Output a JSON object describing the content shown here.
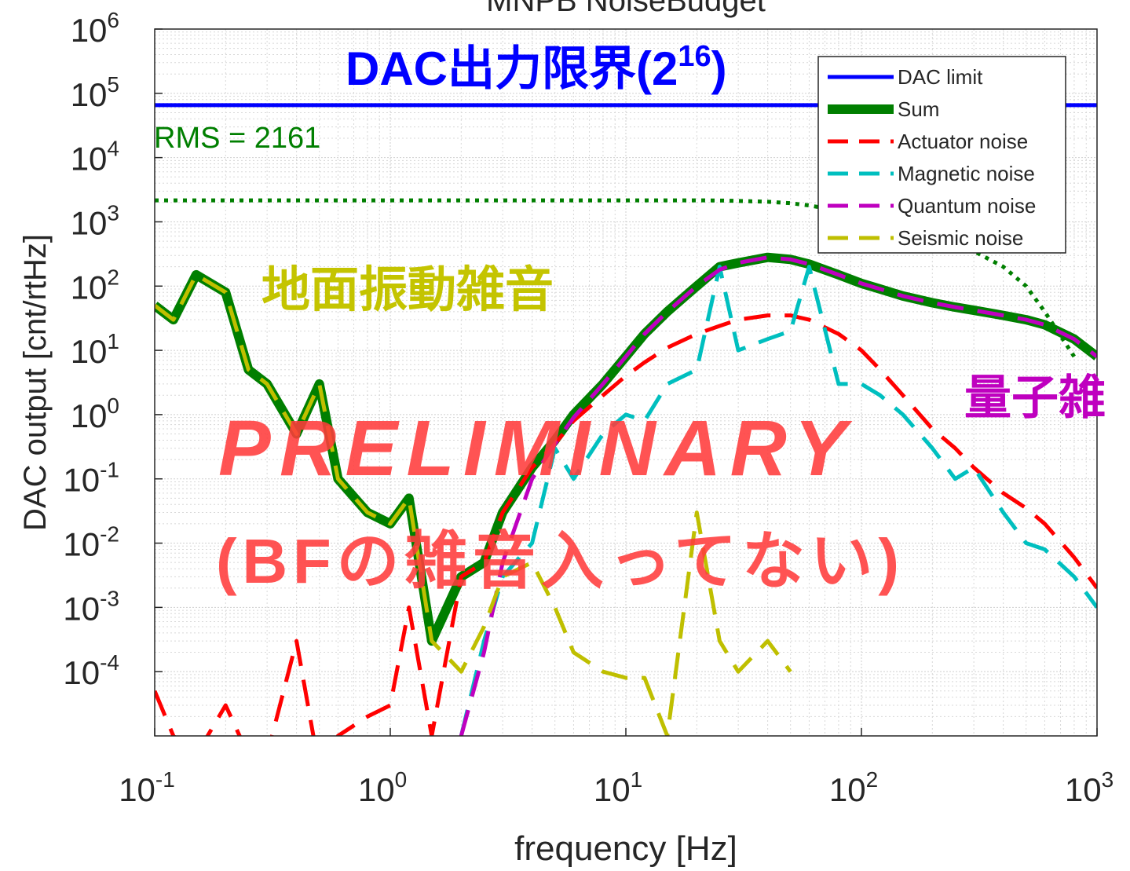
{
  "chart_data": {
    "type": "line",
    "title": "MNPB NoiseBudget",
    "x_label": "frequency [Hz]",
    "y_label": "DAC output [cnt/rtHz]",
    "log_x": true,
    "log_y": true,
    "grid": true,
    "legend": "upper right",
    "xlim": [
      0.1,
      1000
    ],
    "ylim": [
      1e-05,
      1000000
    ],
    "xticks": [
      {
        "value": 0.1,
        "label": "10",
        "exponent": "-1"
      },
      {
        "value": 1,
        "label": "10",
        "exponent": "0"
      },
      {
        "value": 10,
        "label": "10",
        "exponent": "1"
      },
      {
        "value": 100,
        "label": "10",
        "exponent": "2"
      },
      {
        "value": 1000,
        "label": "10",
        "exponent": "3"
      }
    ],
    "yticks": [
      {
        "value": 0.0001,
        "label": "10",
        "exponent": "-4"
      },
      {
        "value": 0.001,
        "label": "10",
        "exponent": "-3"
      },
      {
        "value": 0.01,
        "label": "10",
        "exponent": "-2"
      },
      {
        "value": 0.1,
        "label": "10",
        "exponent": "-1"
      },
      {
        "value": 1,
        "label": "10",
        "exponent": "0"
      },
      {
        "value": 10,
        "label": "10",
        "exponent": "1"
      },
      {
        "value": 100,
        "label": "10",
        "exponent": "2"
      },
      {
        "value": 1000,
        "label": "10",
        "exponent": "3"
      },
      {
        "value": 10000,
        "label": "10",
        "exponent": "4"
      },
      {
        "value": 100000,
        "label": "10",
        "exponent": "5"
      },
      {
        "value": 1000000,
        "label": "10",
        "exponent": "6"
      }
    ],
    "x": [
      0.1,
      0.12,
      0.15,
      0.2,
      0.25,
      0.3,
      0.4,
      0.5,
      0.6,
      0.8,
      1,
      1.2,
      1.5,
      2,
      2.5,
      3,
      4,
      5,
      6,
      8,
      10,
      12,
      15,
      20,
      25,
      30,
      40,
      50,
      60,
      80,
      100,
      120,
      150,
      200,
      250,
      300,
      400,
      500,
      600,
      800,
      1000
    ],
    "series": [
      {
        "name": "Sum",
        "color": "#007f00",
        "style": "solid",
        "width": 12,
        "values": [
          50,
          30,
          150,
          80,
          5,
          3,
          0.5,
          3,
          0.1,
          0.03,
          0.02,
          0.05,
          0.0003,
          0.003,
          0.005,
          0.03,
          0.15,
          0.4,
          1,
          3,
          8,
          18,
          40,
          100,
          200,
          230,
          280,
          260,
          220,
          150,
          110,
          90,
          70,
          55,
          47,
          42,
          35,
          30,
          25,
          15,
          8
        ]
      },
      {
        "name": "Actuator noise",
        "color": "#ff0000",
        "style": "dashed",
        "width": 5,
        "values": [
          5e-05,
          1e-05,
          5e-06,
          3e-05,
          5e-06,
          5e-06,
          0.0003,
          3e-06,
          1e-05,
          2e-05,
          3e-05,
          0.001,
          1e-05,
          0.003,
          0.005,
          0.03,
          0.15,
          0.35,
          0.8,
          2,
          4,
          6.5,
          11,
          18,
          24,
          30,
          35,
          35,
          30,
          18,
          10,
          5,
          2,
          0.6,
          0.3,
          0.15,
          0.06,
          0.035,
          0.02,
          0.006,
          0.002
        ]
      },
      {
        "name": "Magnetic noise",
        "color": "#00bfbf",
        "style": "dashed",
        "width": 5,
        "values": [
          null,
          null,
          null,
          null,
          null,
          null,
          null,
          null,
          null,
          null,
          null,
          null,
          null,
          1e-05,
          0.0003,
          0.003,
          0.01,
          0.3,
          0.1,
          0.5,
          1,
          0.8,
          3,
          5,
          200,
          10,
          15,
          20,
          200,
          3,
          3,
          2,
          1,
          0.3,
          0.1,
          0.15,
          0.03,
          0.01,
          0.008,
          0.003,
          0.001
        ]
      },
      {
        "name": "Quantum noise",
        "color": "#bf00bf",
        "style": "dashed",
        "width": 5,
        "values": [
          null,
          null,
          null,
          null,
          null,
          null,
          null,
          null,
          null,
          null,
          null,
          null,
          null,
          1e-05,
          0.0002,
          0.005,
          0.1,
          0.35,
          0.9,
          3,
          8,
          18,
          40,
          100,
          180,
          230,
          280,
          260,
          220,
          150,
          110,
          90,
          70,
          55,
          47,
          42,
          35,
          30,
          25,
          15,
          8
        ]
      },
      {
        "name": "Seismic noise",
        "color": "#bfbf00",
        "style": "dashed",
        "width": 5,
        "values": [
          50,
          30,
          150,
          80,
          5,
          3,
          0.5,
          3,
          0.1,
          0.03,
          0.02,
          0.05,
          0.0003,
          0.0001,
          0.0005,
          0.003,
          0.005,
          0.001,
          0.0002,
          0.0001,
          8e-05,
          8e-05,
          1e-05,
          0.03,
          0.0003,
          0.0001,
          0.0003,
          0.0001,
          null,
          null,
          null,
          null,
          null,
          null,
          null,
          null,
          null,
          null,
          null,
          null,
          null
        ]
      }
    ],
    "dac_limit": {
      "name": "DAC limit",
      "color": "#0000ff",
      "value": 65536
    },
    "rms_curve": {
      "color": "#007f00",
      "values": [
        2161,
        2161,
        2161,
        2161,
        2161,
        2161,
        2161,
        2161,
        2161,
        2161,
        2161,
        2161,
        2161,
        2161,
        2161,
        2161,
        2161,
        2161,
        2161,
        2161,
        2161,
        2161,
        2161,
        2161,
        2150,
        2120,
        2050,
        1950,
        1800,
        1500,
        1200,
        1000,
        800,
        600,
        450,
        350,
        200,
        100,
        40,
        8,
        null
      ]
    },
    "annotations": {
      "dac": {
        "text": "DAC出力限界(2",
        "sup": "16",
        "tail": ")"
      },
      "rms": "RMS = 2161",
      "seismic": "地面振動雑音",
      "quantum": "量子雑",
      "preliminary": "PRELIMINARY",
      "note": "(BFの雑音入ってない)"
    }
  }
}
